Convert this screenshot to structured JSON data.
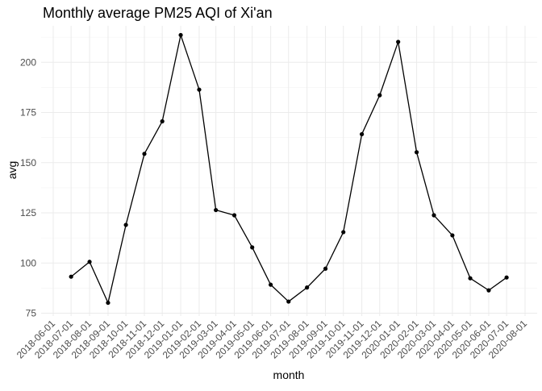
{
  "chart_data": {
    "type": "line",
    "title": "Monthly average PM25 AQI of Xi'an",
    "xlabel": "month",
    "ylabel": "avg",
    "x_ticks": [
      "2018-06-01",
      "2018-07-01",
      "2018-08-01",
      "2018-09-01",
      "2018-10-01",
      "2018-11-01",
      "2018-12-01",
      "2019-01-01",
      "2019-02-01",
      "2019-03-01",
      "2019-04-01",
      "2019-05-01",
      "2019-06-01",
      "2019-07-01",
      "2019-08-01",
      "2019-09-01",
      "2019-10-01",
      "2019-11-01",
      "2019-12-01",
      "2020-01-01",
      "2020-02-01",
      "2020-03-01",
      "2020-04-01",
      "2020-05-01",
      "2020-06-01",
      "2020-07-01",
      "2020-08-01"
    ],
    "y_ticks": [
      75,
      100,
      125,
      150,
      175,
      200
    ],
    "ylim": [
      73.6,
      218.2
    ],
    "grid": true,
    "legend": "none",
    "series": [
      {
        "color": "#000000",
        "points": [
          {
            "x": "2018-07-01",
            "y": 93.2
          },
          {
            "x": "2018-08-01",
            "y": 100.6
          },
          {
            "x": "2018-09-01",
            "y": 80.2
          },
          {
            "x": "2018-10-01",
            "y": 119.0
          },
          {
            "x": "2018-11-01",
            "y": 154.4
          },
          {
            "x": "2018-12-01",
            "y": 170.6
          },
          {
            "x": "2019-01-01",
            "y": 213.6
          },
          {
            "x": "2019-02-01",
            "y": 186.4
          },
          {
            "x": "2019-03-01",
            "y": 126.4
          },
          {
            "x": "2019-04-01",
            "y": 123.8
          },
          {
            "x": "2019-05-01",
            "y": 107.8
          },
          {
            "x": "2019-06-01",
            "y": 89.2
          },
          {
            "x": "2019-07-01",
            "y": 80.8
          },
          {
            "x": "2019-08-01",
            "y": 87.8
          },
          {
            "x": "2019-09-01",
            "y": 97.2
          },
          {
            "x": "2019-10-01",
            "y": 115.4
          },
          {
            "x": "2019-11-01",
            "y": 164.2
          },
          {
            "x": "2019-12-01",
            "y": 183.6
          },
          {
            "x": "2020-01-01",
            "y": 210.2
          },
          {
            "x": "2020-02-01",
            "y": 155.2
          },
          {
            "x": "2020-03-01",
            "y": 123.8
          },
          {
            "x": "2020-04-01",
            "y": 113.8
          },
          {
            "x": "2020-05-01",
            "y": 92.4
          },
          {
            "x": "2020-06-01",
            "y": 86.4
          },
          {
            "x": "2020-07-01",
            "y": 92.8
          }
        ]
      }
    ]
  }
}
